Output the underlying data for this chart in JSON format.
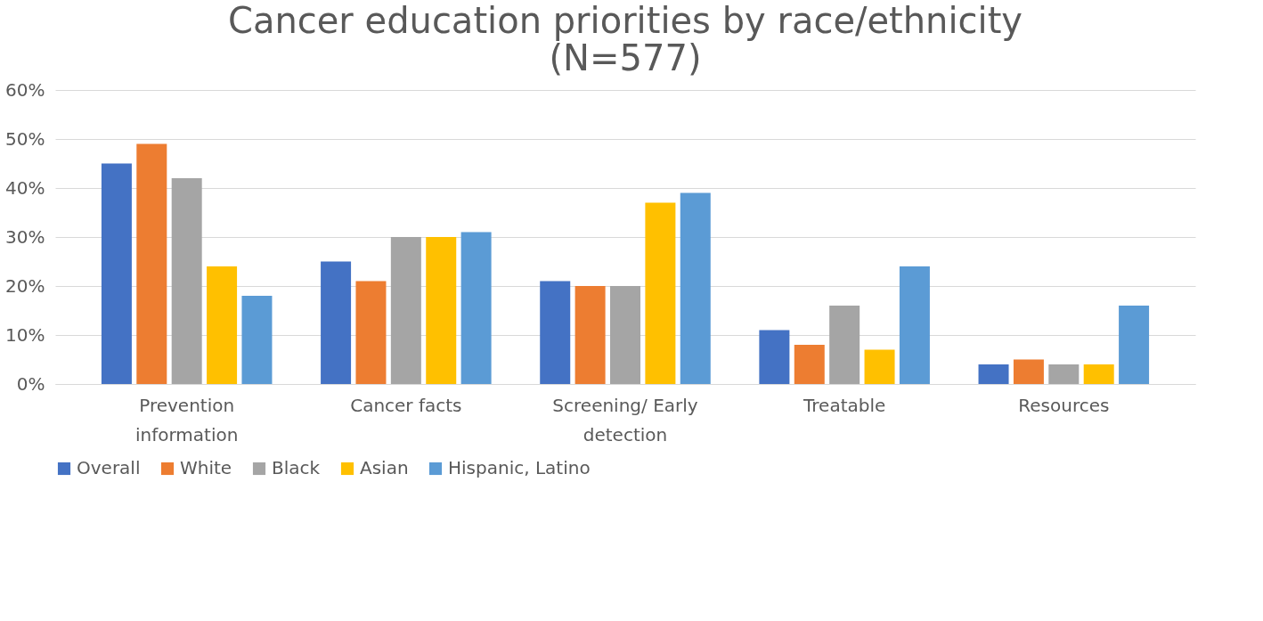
{
  "chart_data": {
    "type": "bar",
    "title": "Cancer education priorities by race/ethnicity (N=577)",
    "categories": [
      "Prevention information",
      "Cancer facts",
      "Screening/ Early detection",
      "Treatable",
      "Resources"
    ],
    "series": [
      {
        "name": "Overall",
        "color": "#4472c4",
        "values": [
          45,
          25,
          21,
          11,
          4
        ]
      },
      {
        "name": "White",
        "color": "#ed7d31",
        "values": [
          49,
          21,
          20,
          8,
          5
        ]
      },
      {
        "name": "Black",
        "color": "#a5a5a5",
        "values": [
          42,
          30,
          20,
          16,
          4
        ]
      },
      {
        "name": "Asian",
        "color": "#ffc000",
        "values": [
          24,
          30,
          37,
          7,
          4
        ]
      },
      {
        "name": "Hispanic, Latino",
        "color": "#5b9bd5",
        "values": [
          18,
          31,
          39,
          24,
          16
        ]
      }
    ],
    "ylim": [
      0,
      60
    ],
    "yticks": [
      {
        "value": 0,
        "label": "0%"
      },
      {
        "value": 10,
        "label": "10%"
      },
      {
        "value": 20,
        "label": "20%"
      },
      {
        "value": 30,
        "label": "30%"
      },
      {
        "value": 40,
        "label": "40%"
      },
      {
        "value": 50,
        "label": "50%"
      },
      {
        "value": 60,
        "label": "60%"
      }
    ],
    "grid": "y",
    "legend": "bottom"
  }
}
